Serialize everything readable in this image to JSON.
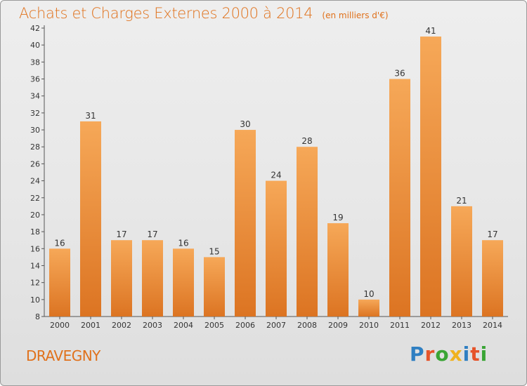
{
  "title": "Achats et Charges Externes 2000 à 2014",
  "unit": "(en milliers d'€)",
  "town": "DRAVEGNY",
  "logo": {
    "letters": [
      "P",
      "r",
      "o",
      "x",
      "i",
      "t",
      "i"
    ],
    "colors": [
      "#2f7fc2",
      "#e6542a",
      "#3aa535",
      "#f0b21f",
      "#2f7fc2",
      "#e6542a",
      "#3aa535"
    ]
  },
  "colors": {
    "accent": "#e0711b",
    "bar_light": "#f6a858",
    "bar_dark": "#dc7422"
  },
  "chart_data": {
    "type": "bar",
    "categories": [
      "2000",
      "2001",
      "2002",
      "2003",
      "2004",
      "2005",
      "2006",
      "2007",
      "2008",
      "2009",
      "2010",
      "2011",
      "2012",
      "2013",
      "2014"
    ],
    "values": [
      16,
      31,
      17,
      17,
      16,
      15,
      30,
      24,
      28,
      19,
      10,
      36,
      41,
      21,
      17
    ],
    "ylim": [
      8,
      42
    ],
    "yticks": [
      8,
      10,
      12,
      14,
      16,
      18,
      20,
      22,
      24,
      26,
      28,
      30,
      32,
      34,
      36,
      38,
      40,
      42
    ],
    "grid": false
  }
}
